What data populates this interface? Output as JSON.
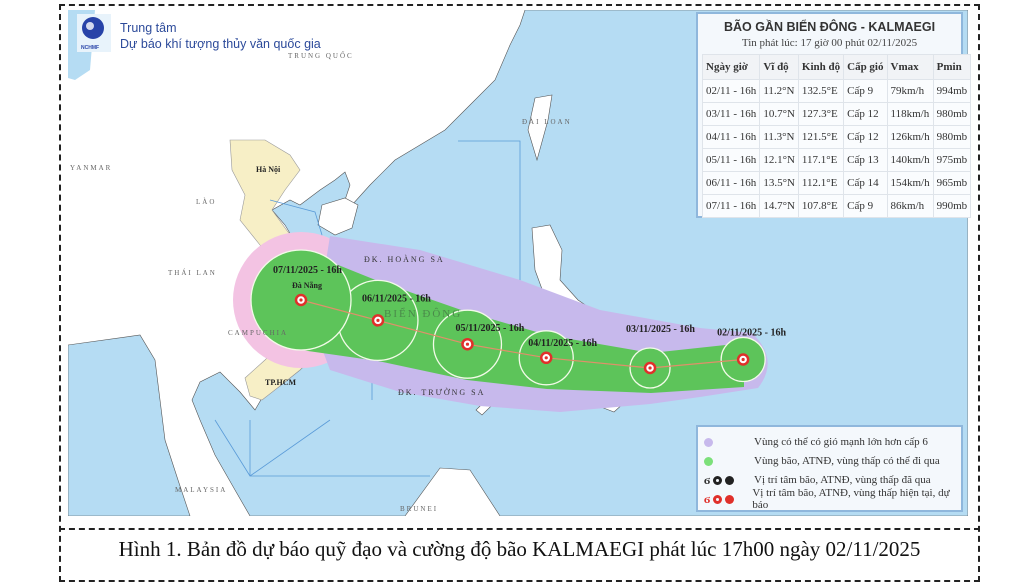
{
  "header": {
    "logo_text": "NCHMF",
    "org_line1": "Trung tâm",
    "org_line2": "Dự báo khí tượng thủy văn quốc gia"
  },
  "colors": {
    "sea": "#b5dcf3",
    "land": "#ffffff",
    "vietnam": "#f7efc6",
    "strong_wind_zone": "#c7b9ec",
    "storm_zone": "#5dc45a",
    "storm_center": "#e0302a"
  },
  "map_labels": {
    "china": "TRUNG QUỐC",
    "myanmar": "YANMAR",
    "laos": "LÀO",
    "thailand": "THÁI LAN",
    "cambodia": "CAMPUCHIA",
    "taiwan": "ĐÀI LOAN",
    "malaysia": "MALAYSIA",
    "brunei": "BRUNEI",
    "hanoi": "Hà Nội",
    "danang": "Đà Nẵng",
    "hcm": "TP.HCM",
    "hoang_sa": "ĐK. HOÀNG SA",
    "truong_sa": "ĐK. TRƯỜNG SA",
    "bien_dong": "BIỂN ĐÔNG"
  },
  "track": [
    {
      "label": "02/11/2025 - 16h",
      "lat": 11.2,
      "lon": 132.5
    },
    {
      "label": "03/11/2025 - 16h",
      "lat": 10.7,
      "lon": 127.3
    },
    {
      "label": "04/11/2025 - 16h",
      "lat": 11.3,
      "lon": 121.5
    },
    {
      "label": "05/11/2025 - 16h",
      "lat": 12.1,
      "lon": 117.1
    },
    {
      "label": "06/11/2025 - 16h",
      "lat": 13.5,
      "lon": 112.1
    },
    {
      "label": "07/11/2025 - 16h",
      "lat": 14.7,
      "lon": 107.8
    }
  ],
  "info": {
    "title": "BÃO GẦN BIỂN ĐÔNG - KALMAEGI",
    "issued": "Tin phát lúc: 17 giờ 00 phút 02/11/2025",
    "columns": [
      "Ngày giờ",
      "Vĩ độ",
      "Kinh độ",
      "Cấp gió",
      "Vmax",
      "Pmin"
    ],
    "rows": [
      [
        "02/11 - 16h",
        "11.2°N",
        "132.5°E",
        "Cấp 9",
        "79km/h",
        "994mb"
      ],
      [
        "03/11 - 16h",
        "10.7°N",
        "127.3°E",
        "Cấp 12",
        "118km/h",
        "980mb"
      ],
      [
        "04/11 - 16h",
        "11.3°N",
        "121.5°E",
        "Cấp 12",
        "126km/h",
        "980mb"
      ],
      [
        "05/11 - 16h",
        "12.1°N",
        "117.1°E",
        "Cấp 13",
        "140km/h",
        "975mb"
      ],
      [
        "06/11 - 16h",
        "13.5°N",
        "112.1°E",
        "Cấp 14",
        "154km/h",
        "965mb"
      ],
      [
        "07/11 - 16h",
        "14.7°N",
        "107.8°E",
        "Cấp 9",
        "86km/h",
        "990mb"
      ]
    ]
  },
  "legend": [
    {
      "icon": "purple-dot",
      "label": "Vùng có thể có gió mạnh lớn hơn cấp 6"
    },
    {
      "icon": "green-dot",
      "label": "Vùng bão, ATNĐ, vùng thấp có thể đi qua"
    },
    {
      "icon": "black-storm-symbols",
      "label": "Vị trí tâm bão, ATNĐ, vùng thấp đã qua"
    },
    {
      "icon": "red-storm-symbols",
      "label": "Vị trí tâm bão, ATNĐ, vùng thấp hiện tại, dự báo"
    }
  ],
  "caption": "Hình 1. Bản đồ dự báo quỹ đạo và cường độ bão KALMAEGI phát lúc 17h00 ngày 02/11/2025"
}
